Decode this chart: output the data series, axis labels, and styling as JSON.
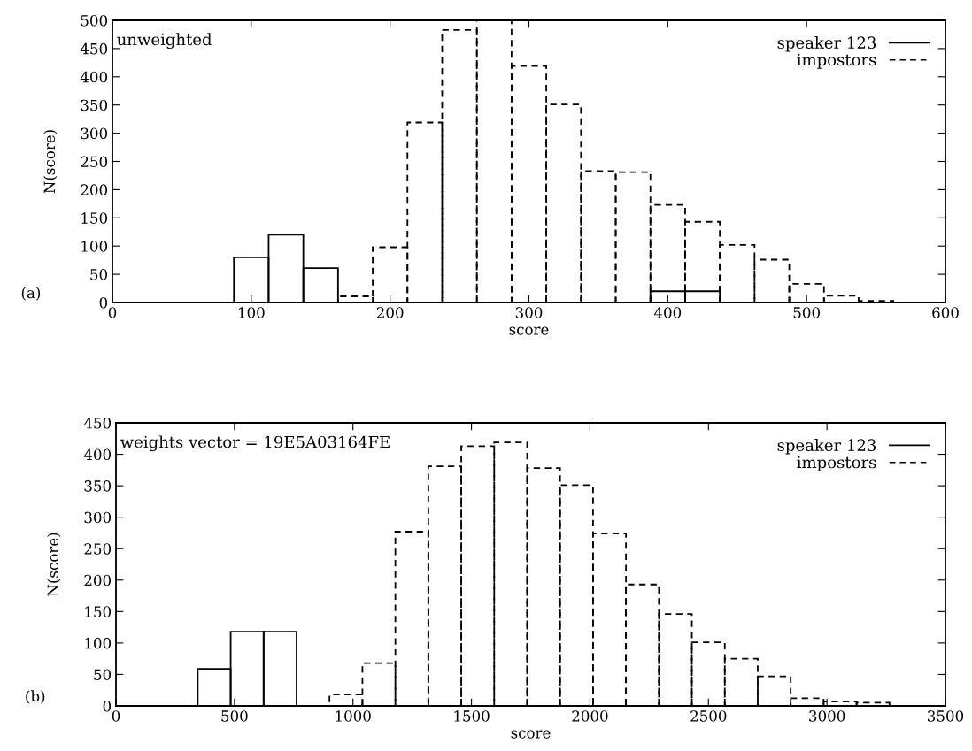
{
  "chart_data": [
    {
      "type": "histogram",
      "xlabel": "score",
      "ylabel": "N(score)",
      "xlim": [
        0,
        600
      ],
      "xticks": [
        0,
        100,
        200,
        300,
        400,
        500,
        600
      ],
      "ylim": [
        0,
        500
      ],
      "yticks": [
        0,
        50,
        100,
        150,
        200,
        250,
        300,
        350,
        400,
        450,
        500
      ],
      "legend": "top right",
      "annotations": [
        "unweighted",
        "(a)"
      ],
      "bins": [
        87.5,
        112.5,
        137.5,
        162.5,
        187.5,
        212.5,
        237.5,
        262.5,
        287.5,
        312.5,
        337.5,
        362.5,
        387.5,
        412.5,
        437.5,
        462.5,
        487.5,
        512.5,
        537.5,
        562.5
      ],
      "series": [
        {
          "name": "speaker 123",
          "color": "#000000",
          "line_style": "solid",
          "values": [
            80,
            120,
            61,
            0,
            0,
            0,
            0,
            0,
            0,
            0,
            0,
            0,
            20,
            20,
            null,
            null,
            null,
            null,
            null
          ]
        },
        {
          "name": "impostors",
          "color": "#000000",
          "line_style": "dashed",
          "values": [
            null,
            null,
            null,
            11,
            98,
            319,
            483,
            500,
            419,
            351,
            233,
            231,
            173,
            143,
            102,
            76,
            33,
            12,
            3
          ]
        }
      ]
    },
    {
      "type": "histogram",
      "xlabel": "score",
      "ylabel": "N(score)",
      "xlim": [
        0,
        3500
      ],
      "xticks": [
        0,
        500,
        1000,
        1500,
        2000,
        2500,
        3000,
        3500
      ],
      "ylim": [
        0,
        450
      ],
      "yticks": [
        0,
        50,
        100,
        150,
        200,
        250,
        300,
        350,
        400,
        450
      ],
      "legend": "top right",
      "annotations": [
        "weights vector = 19E5A03164FE",
        "(b)"
      ],
      "bins": [
        345,
        484,
        623,
        762,
        901,
        1040,
        1179,
        1318,
        1457,
        1596,
        1735,
        1874,
        2013,
        2152,
        2291,
        2430,
        2569,
        2708,
        2847,
        2986,
        3125,
        3264
      ],
      "series": [
        {
          "name": "speaker 123",
          "color": "#000000",
          "line_style": "solid",
          "values": [
            59,
            118,
            118,
            null,
            null,
            null,
            null,
            null,
            null,
            null,
            null,
            null,
            null,
            null,
            null,
            null,
            null,
            null,
            null,
            null,
            null
          ]
        },
        {
          "name": "impostors",
          "color": "#000000",
          "line_style": "dashed",
          "values": [
            null,
            null,
            null,
            null,
            18,
            68,
            277,
            381,
            413,
            419,
            378,
            351,
            274,
            193,
            146,
            101,
            75,
            47,
            12,
            7,
            5
          ]
        }
      ]
    }
  ]
}
